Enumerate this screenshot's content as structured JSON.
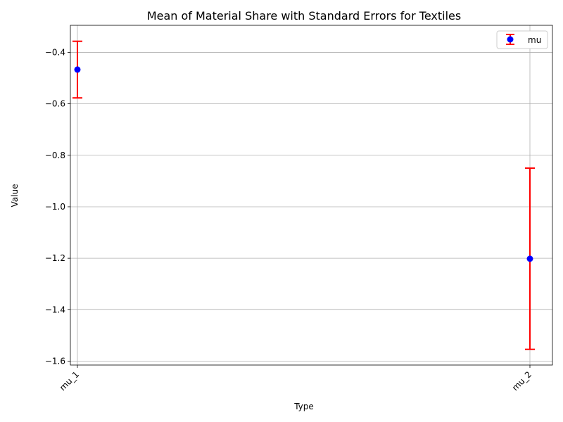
{
  "chart_data": {
    "type": "scatter",
    "title": "Mean of Material Share with Standard Errors for Textiles",
    "xlabel": "Type",
    "ylabel": "Value",
    "categories": [
      "mu_1",
      "mu_2"
    ],
    "series": [
      {
        "name": "mu",
        "values": [
          -0.467,
          -1.202
        ],
        "errors": [
          0.11,
          0.352
        ],
        "marker_color": "#0000ff",
        "error_color": "#ff0000"
      }
    ],
    "ylim": [
      -1.615,
      -0.295
    ],
    "yticks": [
      -0.4,
      -0.6,
      -0.8,
      -1.0,
      -1.2,
      -1.4,
      -1.6
    ],
    "ytick_labels": [
      "−0.4",
      "−0.6",
      "−0.8",
      "−1.0",
      "−1.2",
      "−1.4",
      "−1.6"
    ],
    "grid": true,
    "legend_position": "top-right"
  }
}
